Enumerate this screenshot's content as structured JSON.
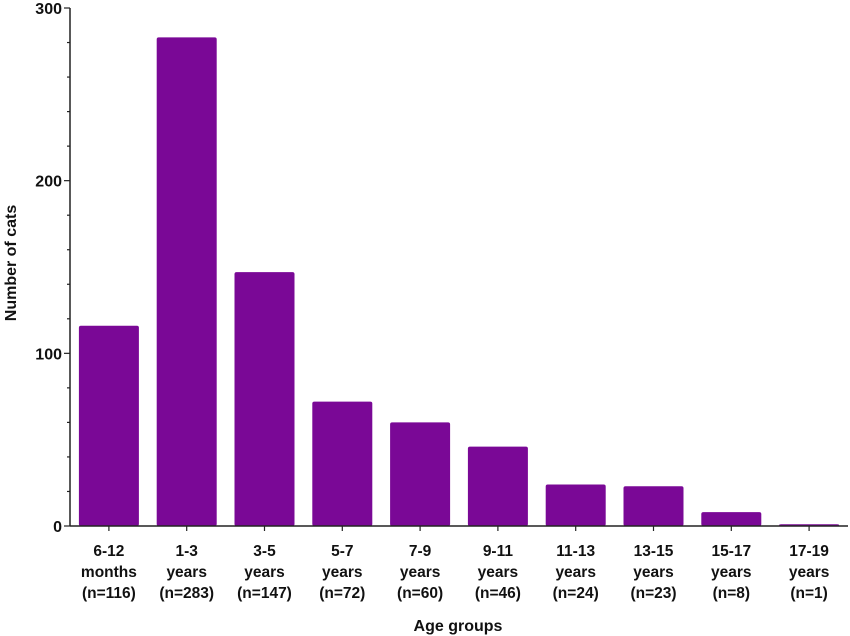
{
  "chart_data": {
    "type": "bar",
    "xlabel": "Age groups",
    "ylabel": "Number of cats",
    "ylim": [
      0,
      300
    ],
    "yticks": [
      "0",
      "100",
      "200",
      "300"
    ],
    "grid": false,
    "bar_color": "#7a0896",
    "categories": [
      {
        "lines": [
          "6-12",
          "months",
          "(n=116)"
        ]
      },
      {
        "lines": [
          "1-3",
          "years",
          "(n=283)"
        ]
      },
      {
        "lines": [
          "3-5",
          "years",
          "(n=147)"
        ]
      },
      {
        "lines": [
          "5-7",
          "years",
          "(n=72)"
        ]
      },
      {
        "lines": [
          "7-9",
          "years",
          "(n=60)"
        ]
      },
      {
        "lines": [
          "9-11",
          "years",
          "(n=46)"
        ]
      },
      {
        "lines": [
          "11-13",
          "years",
          "(n=24)"
        ]
      },
      {
        "lines": [
          "13-15",
          "years",
          "(n=23)"
        ]
      },
      {
        "lines": [
          "15-17",
          "years",
          "(n=8)"
        ]
      },
      {
        "lines": [
          "17-19",
          "years",
          "(n=1)"
        ]
      }
    ],
    "values": [
      116,
      283,
      147,
      72,
      60,
      46,
      24,
      23,
      8,
      1
    ]
  }
}
